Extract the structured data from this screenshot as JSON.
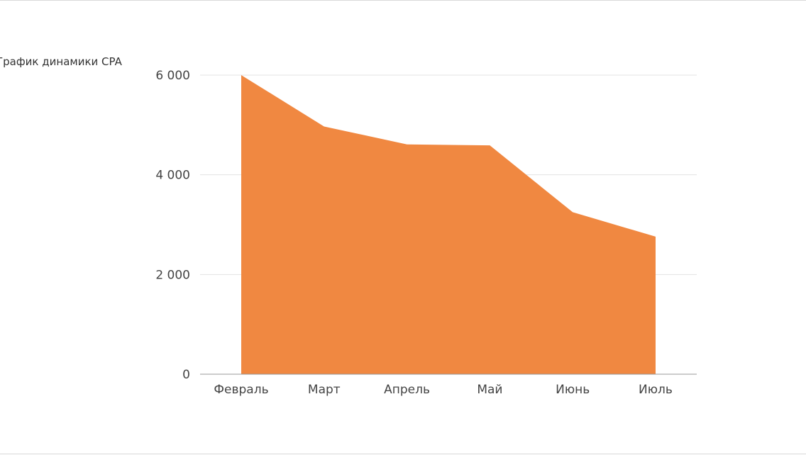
{
  "chart_data": {
    "type": "area",
    "title": "График динамики CPA",
    "categories": [
      "Февраль",
      "Март",
      "Апрель",
      "Май",
      "Июнь",
      "Июль"
    ],
    "series": [
      {
        "values": [
          6000,
          4970,
          4610,
          4590,
          3250,
          2760
        ]
      }
    ],
    "yticks": [
      {
        "value": 0,
        "label": "0"
      },
      {
        "value": 2000,
        "label": "2 000"
      },
      {
        "value": 4000,
        "label": "4 000"
      },
      {
        "value": 6000,
        "label": "6 000"
      }
    ],
    "ylim": [
      0,
      6000
    ],
    "grid": true,
    "legend": "none",
    "colors": {
      "area": "#f08841"
    }
  }
}
